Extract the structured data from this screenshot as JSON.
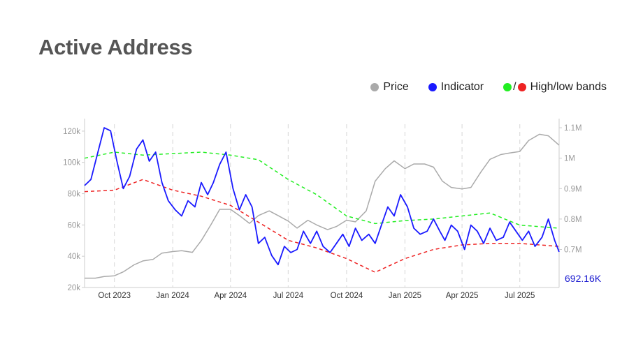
{
  "page": {
    "title": "Active Address"
  },
  "legend": {
    "price": {
      "label": "Price",
      "color": "#aaaaaa"
    },
    "indicator": {
      "label": "Indicator",
      "color": "#1a1aff"
    },
    "bands": {
      "label": "High/low bands",
      "high_color": "#22ee22",
      "low_color": "#ee2222",
      "separator": "/"
    }
  },
  "chart_data": {
    "type": "line",
    "x_ticks": [
      "Oct 2023",
      "Jan 2024",
      "Apr 2024",
      "Jul 2024",
      "Oct 2024",
      "Jan 2025",
      "Apr 2025",
      "Jul 2025"
    ],
    "left_axis": {
      "ticks": [
        "20k",
        "40k",
        "60k",
        "80k",
        "100k",
        "120k"
      ],
      "values": [
        20000,
        40000,
        60000,
        80000,
        100000,
        120000
      ],
      "ylim": [
        20000,
        128000
      ]
    },
    "right_axis": {
      "ticks": [
        "0.7M",
        "0.8M",
        "0.9M",
        "1M",
        "1.1M"
      ],
      "values": [
        700000,
        800000,
        900000,
        1000000,
        1100000
      ],
      "ylim": [
        575000,
        1130000
      ]
    },
    "last_value_label": "692.16K",
    "grid": "vertical dashed",
    "series": [
      {
        "name": "Price",
        "axis": "left",
        "color": "#aaaaaa",
        "x": [
          "2023-08-15",
          "2023-09-01",
          "2023-09-15",
          "2023-10-01",
          "2023-10-15",
          "2023-11-01",
          "2023-11-15",
          "2023-12-01",
          "2023-12-15",
          "2024-01-01",
          "2024-01-15",
          "2024-02-01",
          "2024-02-15",
          "2024-03-01",
          "2024-03-15",
          "2024-04-01",
          "2024-04-15",
          "2024-05-01",
          "2024-05-15",
          "2024-06-01",
          "2024-06-15",
          "2024-07-01",
          "2024-07-15",
          "2024-08-01",
          "2024-08-15",
          "2024-09-01",
          "2024-09-15",
          "2024-10-01",
          "2024-10-15",
          "2024-11-01",
          "2024-11-15",
          "2024-12-01",
          "2024-12-15",
          "2025-01-01",
          "2025-01-15",
          "2025-02-01",
          "2025-02-15",
          "2025-03-01",
          "2025-03-15",
          "2025-04-01",
          "2025-04-15",
          "2025-05-01",
          "2025-05-15",
          "2025-06-01",
          "2025-06-15",
          "2025-07-01",
          "2025-07-15",
          "2025-08-01",
          "2025-08-15",
          "2025-09-01"
        ],
        "values": [
          26000,
          26000,
          27000,
          27500,
          30000,
          34500,
          37000,
          38000,
          42000,
          43000,
          43500,
          42500,
          50000,
          60000,
          70000,
          70000,
          66000,
          61000,
          66000,
          69000,
          66000,
          62500,
          58000,
          63000,
          60000,
          57000,
          59000,
          63000,
          62000,
          69000,
          88000,
          96000,
          101000,
          96000,
          99000,
          99000,
          97000,
          88000,
          84000,
          83000,
          84000,
          94000,
          102000,
          105000,
          106000,
          107000,
          114000,
          118000,
          117000,
          111000
        ]
      },
      {
        "name": "Indicator",
        "axis": "right",
        "color": "#1a1aff",
        "x": [
          "2023-08-15",
          "2023-08-25",
          "2023-09-05",
          "2023-09-15",
          "2023-09-25",
          "2023-10-05",
          "2023-10-15",
          "2023-10-25",
          "2023-11-05",
          "2023-11-15",
          "2023-11-25",
          "2023-12-05",
          "2023-12-15",
          "2023-12-25",
          "2024-01-05",
          "2024-01-15",
          "2024-01-25",
          "2024-02-05",
          "2024-02-15",
          "2024-02-25",
          "2024-03-05",
          "2024-03-15",
          "2024-03-25",
          "2024-04-05",
          "2024-04-15",
          "2024-04-25",
          "2024-05-05",
          "2024-05-15",
          "2024-05-25",
          "2024-06-05",
          "2024-06-15",
          "2024-06-25",
          "2024-07-05",
          "2024-07-15",
          "2024-07-25",
          "2024-08-05",
          "2024-08-15",
          "2024-08-25",
          "2024-09-05",
          "2024-09-15",
          "2024-09-25",
          "2024-10-05",
          "2024-10-15",
          "2024-10-25",
          "2024-11-05",
          "2024-11-15",
          "2024-11-25",
          "2024-12-05",
          "2024-12-15",
          "2024-12-25",
          "2025-01-05",
          "2025-01-15",
          "2025-01-25",
          "2025-02-05",
          "2025-02-15",
          "2025-02-25",
          "2025-03-05",
          "2025-03-15",
          "2025-03-25",
          "2025-04-05",
          "2025-04-15",
          "2025-04-25",
          "2025-05-05",
          "2025-05-15",
          "2025-05-25",
          "2025-06-05",
          "2025-06-15",
          "2025-06-25",
          "2025-07-05",
          "2025-07-15",
          "2025-07-25",
          "2025-08-05",
          "2025-08-15",
          "2025-08-25",
          "2025-09-01"
        ],
        "values": [
          910000,
          930000,
          1020000,
          1100000,
          1090000,
          990000,
          900000,
          940000,
          1030000,
          1060000,
          990000,
          1020000,
          920000,
          860000,
          830000,
          810000,
          860000,
          840000,
          920000,
          880000,
          920000,
          980000,
          1020000,
          900000,
          830000,
          880000,
          840000,
          720000,
          740000,
          680000,
          650000,
          710000,
          690000,
          700000,
          760000,
          720000,
          760000,
          710000,
          690000,
          720000,
          750000,
          710000,
          770000,
          730000,
          750000,
          720000,
          780000,
          840000,
          810000,
          880000,
          840000,
          770000,
          750000,
          760000,
          800000,
          760000,
          730000,
          780000,
          760000,
          700000,
          780000,
          760000,
          720000,
          770000,
          730000,
          740000,
          790000,
          760000,
          730000,
          760000,
          710000,
          740000,
          800000,
          730000,
          692160
        ]
      },
      {
        "name": "High band",
        "axis": "right",
        "color": "#22ee22",
        "x": [
          "2023-08-15",
          "2023-10-01",
          "2023-11-15",
          "2024-01-01",
          "2024-02-15",
          "2024-04-01",
          "2024-05-15",
          "2024-07-01",
          "2024-08-15",
          "2024-10-01",
          "2024-11-15",
          "2025-01-01",
          "2025-02-15",
          "2025-04-01",
          "2025-05-15",
          "2025-07-01",
          "2025-09-01"
        ],
        "values": [
          1000000,
          1020000,
          1010000,
          1015000,
          1020000,
          1010000,
          995000,
          930000,
          880000,
          810000,
          785000,
          795000,
          800000,
          810000,
          820000,
          780000,
          770000
        ]
      },
      {
        "name": "Low band",
        "axis": "right",
        "color": "#ee2222",
        "x": [
          "2023-08-15",
          "2023-10-01",
          "2023-11-15",
          "2024-01-01",
          "2024-02-15",
          "2024-04-01",
          "2024-05-15",
          "2024-07-01",
          "2024-08-15",
          "2024-10-01",
          "2024-11-15",
          "2025-01-01",
          "2025-02-15",
          "2025-04-01",
          "2025-05-15",
          "2025-07-01",
          "2025-09-01"
        ],
        "values": [
          890000,
          895000,
          930000,
          895000,
          875000,
          845000,
          790000,
          730000,
          705000,
          670000,
          625000,
          670000,
          700000,
          715000,
          720000,
          720000,
          710000
        ]
      }
    ]
  }
}
